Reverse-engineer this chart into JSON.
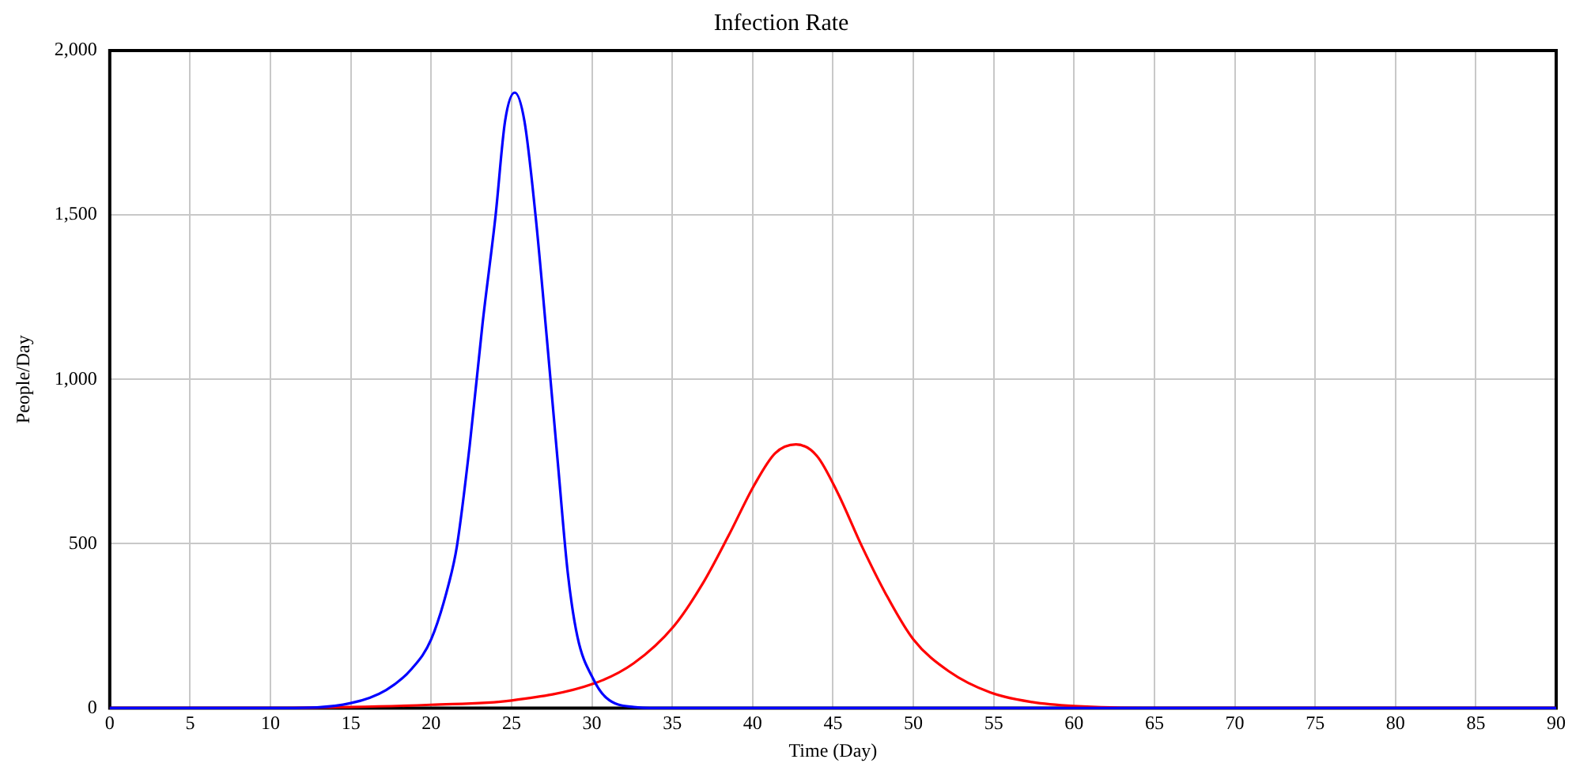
{
  "chart_data": {
    "type": "line",
    "title": "Infection Rate",
    "xlabel": "Time (Day)",
    "ylabel": "People/Day",
    "xlim": [
      0,
      90
    ],
    "xticks": [
      0,
      5,
      10,
      15,
      20,
      25,
      30,
      35,
      40,
      45,
      50,
      55,
      60,
      65,
      70,
      75,
      80,
      85,
      90
    ],
    "ylim": [
      0,
      2000
    ],
    "yticks": [
      {
        "value": 0,
        "label": "0"
      },
      {
        "value": 500,
        "label": "500"
      },
      {
        "value": 1000,
        "label": "1,000"
      },
      {
        "value": 1500,
        "label": "1,500"
      },
      {
        "value": 2000,
        "label": "2,000"
      }
    ],
    "grid": true,
    "legend": false,
    "marker": "none",
    "line_style": "solid",
    "series": [
      {
        "color": "#0000ff",
        "x": [
          0,
          10.8,
          15,
          17.2,
          18.8,
          20,
          21.1,
          21.6,
          22.4,
          23.2,
          24,
          24.6,
          25.2,
          25.8,
          26.5,
          27.2,
          27.9,
          28.5,
          29.1,
          30.1,
          30.9,
          32.6,
          34,
          90
        ],
        "values": [
          0,
          0,
          15,
          55,
          120,
          209,
          379,
          492,
          800,
          1171,
          1495,
          1786,
          1872,
          1786,
          1495,
          1123,
          735,
          411,
          217,
          87,
          31,
          3,
          0,
          0
        ]
      },
      {
        "color": "#ff0000",
        "x": [
          0,
          10,
          15,
          20,
          25,
          30.1,
          32.6,
          35.1,
          36.9,
          38.5,
          40.1,
          41.4,
          42.7,
          44,
          45.3,
          46.8,
          48.3,
          50,
          52.2,
          54.8,
          57.4,
          60,
          65,
          90
        ],
        "values": [
          0,
          0,
          3,
          10,
          23,
          74,
          136,
          249,
          379,
          524,
          678,
          775,
          802,
          767,
          654,
          492,
          346,
          209,
          112,
          47,
          18,
          6,
          0,
          0
        ]
      }
    ]
  }
}
